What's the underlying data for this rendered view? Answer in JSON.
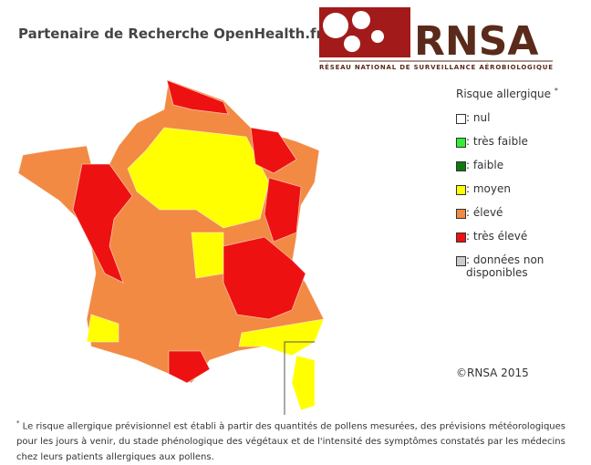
{
  "header": {
    "title": "Partenaire de Recherche OpenHealth.fr",
    "logo_text": "RNSA",
    "logo_subtitle": "RÉSEAU NATIONAL DE SURVEILLANCE AÉROBIOLOGIQUE"
  },
  "legend": {
    "title": "Risque allergique",
    "title_mark": "*",
    "items": [
      {
        "label": ": nul",
        "color": "#ffffff"
      },
      {
        "label": ": très faible",
        "color": "#33ee33"
      },
      {
        "label": ": faible",
        "color": "#117711"
      },
      {
        "label": ": moyen",
        "color": "#ffff00"
      },
      {
        "label": ": élevé",
        "color": "#f28a44"
      },
      {
        "label": ": très élevé",
        "color": "#ee1111"
      },
      {
        "label": ": données non disponibles",
        "color": "#cccccc"
      }
    ]
  },
  "copyright": "©RNSA 2015",
  "footnote": {
    "mark": "*",
    "text": " Le risque allergique prévisionnel est établi à partir des quantités de pollens mesurées, des prévisions météorologiques pour les jours à venir, du stade phénologique des végétaux et de l'intensité des symptômes constatés par les médecins chez leurs patients allergiques aux pollens."
  }
}
